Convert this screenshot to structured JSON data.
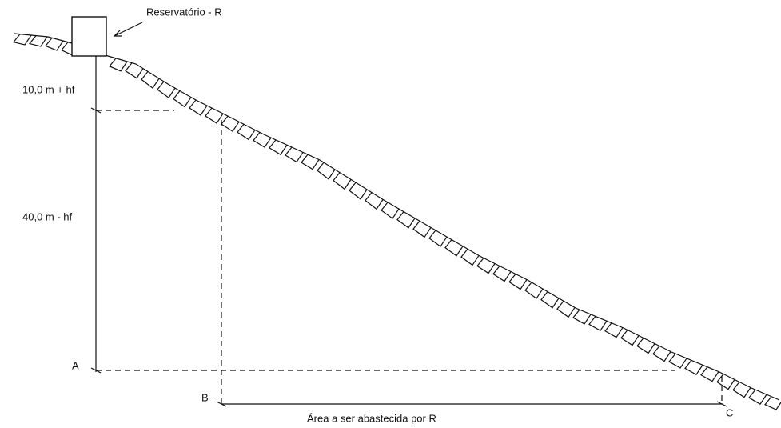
{
  "labels": {
    "reservoir": "Reservatório - R",
    "upper_height": "10,0 m + hf",
    "lower_height": "40,0 m - hf",
    "point_a": "A",
    "point_b": "B",
    "point_c": "C",
    "area": "Área a ser abastecida por R"
  }
}
